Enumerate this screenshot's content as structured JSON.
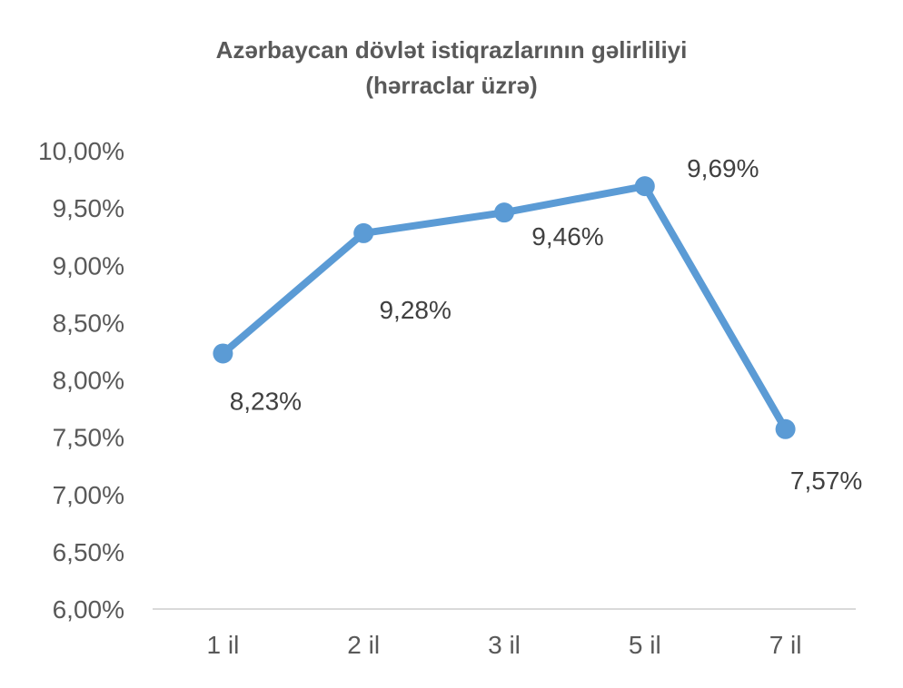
{
  "chart_data": {
    "type": "line",
    "title": "Azərbaycan dövlət istiqrazlarının gəlirliliyi",
    "subtitle": "(hərraclar üzrə)",
    "categories": [
      "1 il",
      "2 il",
      "3 il",
      "5 il",
      "7 il"
    ],
    "series": [
      {
        "values": [
          8.23,
          9.28,
          9.46,
          9.69,
          7.57
        ],
        "labels": [
          "8,23%",
          "9,28%",
          "9,46%",
          "9,69%",
          "7,57%"
        ],
        "color": "#5B9BD5"
      }
    ],
    "y_ticks": [
      "6,00%",
      "6,50%",
      "7,00%",
      "7,50%",
      "8,00%",
      "8,50%",
      "9,00%",
      "9,50%",
      "10,00%"
    ],
    "ylim": [
      6.0,
      10.0
    ],
    "grid": false,
    "legend": "none",
    "axis_color": "#D9D9D9"
  }
}
